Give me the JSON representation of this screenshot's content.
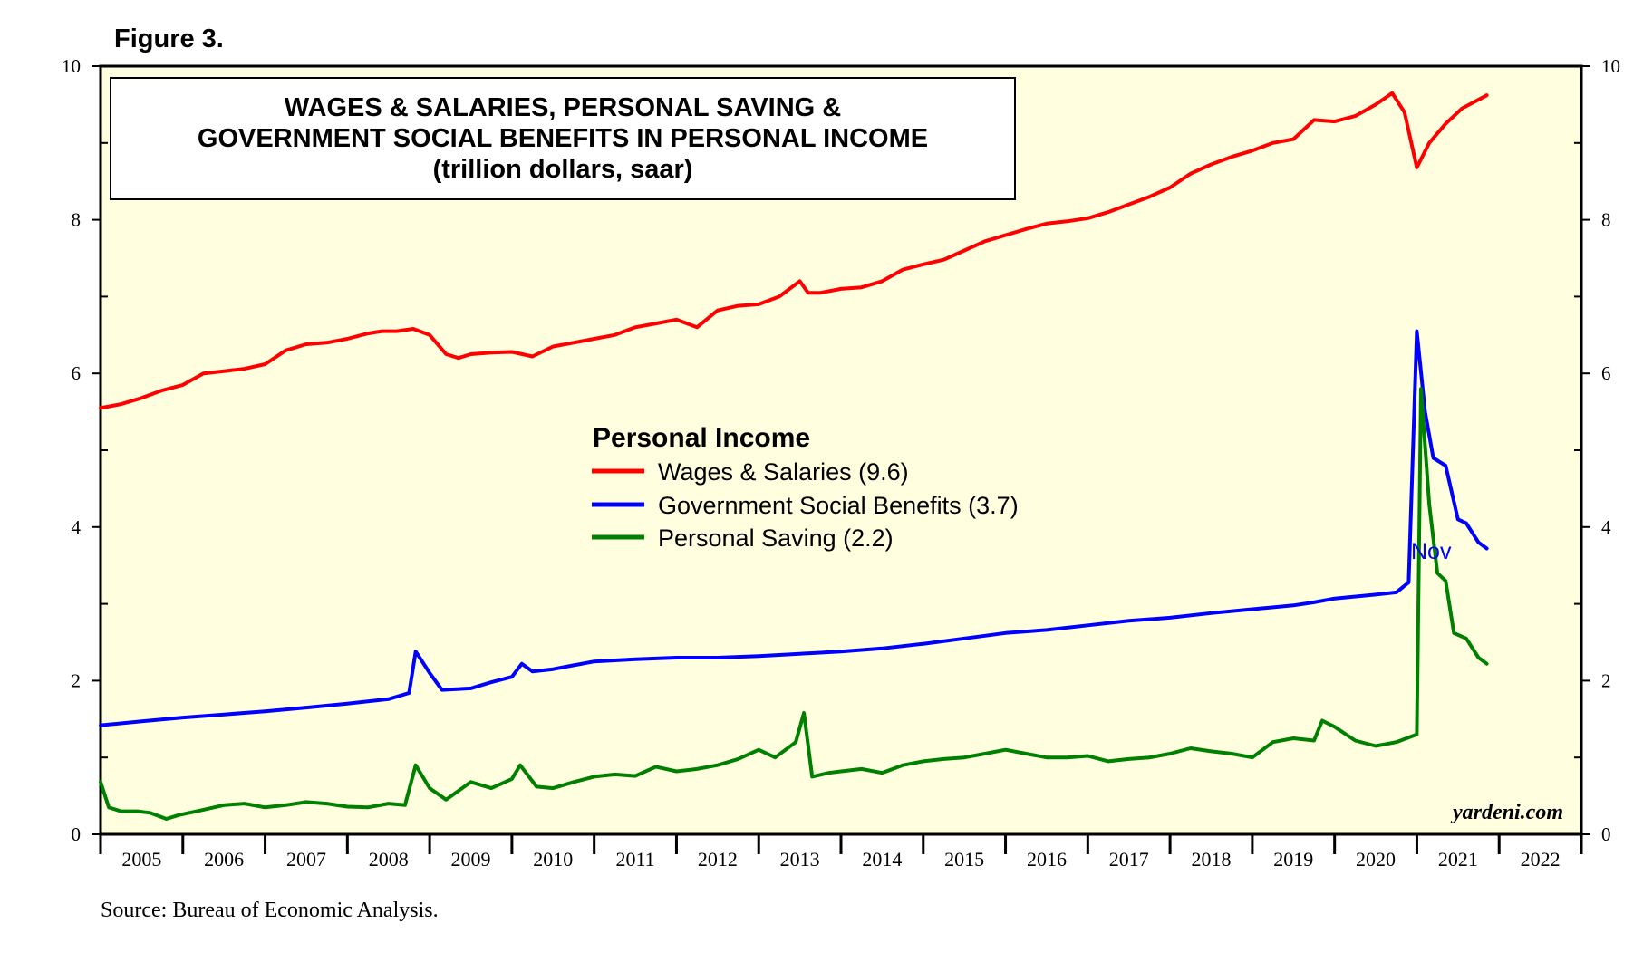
{
  "figure_label": "Figure 3.",
  "source": "Source: Bureau of Economic Analysis.",
  "watermark": "yardeni.com",
  "end_label": "Nov",
  "colors": {
    "plot_bg": "#ffffe0",
    "wages": "#ff0000",
    "benefits": "#0000ff",
    "saving": "#008000",
    "frame": "#000000"
  },
  "chart_data": {
    "type": "line",
    "title_lines": [
      "WAGES & SALARIES, PERSONAL SAVING &",
      "GOVERNMENT SOCIAL BENEFITS IN PERSONAL INCOME",
      "(trillion dollars, saar)"
    ],
    "legend_title": "Personal Income",
    "ylim": [
      0,
      10
    ],
    "y_ticks": [
      0,
      2,
      4,
      6,
      8,
      10
    ],
    "y_tick_labels": [
      "0",
      "2",
      "4",
      "6",
      "8",
      "10"
    ],
    "xlim": [
      2005.0,
      2023.0
    ],
    "x_year_labels": [
      "2005",
      "2006",
      "2007",
      "2008",
      "2009",
      "2010",
      "2011",
      "2012",
      "2013",
      "2014",
      "2015",
      "2016",
      "2017",
      "2018",
      "2019",
      "2020",
      "2021",
      "2022"
    ],
    "series": [
      {
        "name": "Wages & Salaries (9.6)",
        "key": "wages",
        "points": [
          [
            2005.0,
            5.55
          ],
          [
            2005.25,
            5.6
          ],
          [
            2005.5,
            5.68
          ],
          [
            2005.75,
            5.78
          ],
          [
            2006.0,
            5.85
          ],
          [
            2006.25,
            6.0
          ],
          [
            2006.5,
            6.03
          ],
          [
            2006.75,
            6.06
          ],
          [
            2007.0,
            6.12
          ],
          [
            2007.25,
            6.3
          ],
          [
            2007.5,
            6.38
          ],
          [
            2007.75,
            6.4
          ],
          [
            2008.0,
            6.45
          ],
          [
            2008.25,
            6.52
          ],
          [
            2008.42,
            6.55
          ],
          [
            2008.6,
            6.55
          ],
          [
            2008.8,
            6.58
          ],
          [
            2009.0,
            6.5
          ],
          [
            2009.2,
            6.25
          ],
          [
            2009.35,
            6.2
          ],
          [
            2009.5,
            6.25
          ],
          [
            2009.75,
            6.27
          ],
          [
            2010.0,
            6.28
          ],
          [
            2010.25,
            6.22
          ],
          [
            2010.5,
            6.35
          ],
          [
            2010.75,
            6.4
          ],
          [
            2011.0,
            6.45
          ],
          [
            2011.25,
            6.5
          ],
          [
            2011.5,
            6.6
          ],
          [
            2011.75,
            6.65
          ],
          [
            2012.0,
            6.7
          ],
          [
            2012.25,
            6.6
          ],
          [
            2012.5,
            6.82
          ],
          [
            2012.75,
            6.88
          ],
          [
            2013.0,
            6.9
          ],
          [
            2013.25,
            7.0
          ],
          [
            2013.5,
            7.2
          ],
          [
            2013.6,
            7.05
          ],
          [
            2013.75,
            7.05
          ],
          [
            2014.0,
            7.1
          ],
          [
            2014.25,
            7.12
          ],
          [
            2014.5,
            7.2
          ],
          [
            2014.75,
            7.35
          ],
          [
            2015.0,
            7.42
          ],
          [
            2015.25,
            7.48
          ],
          [
            2015.5,
            7.6
          ],
          [
            2015.75,
            7.72
          ],
          [
            2016.0,
            7.8
          ],
          [
            2016.25,
            7.88
          ],
          [
            2016.5,
            7.95
          ],
          [
            2016.75,
            7.98
          ],
          [
            2017.0,
            8.02
          ],
          [
            2017.25,
            8.1
          ],
          [
            2017.5,
            8.2
          ],
          [
            2017.75,
            8.3
          ],
          [
            2018.0,
            8.42
          ],
          [
            2018.25,
            8.6
          ],
          [
            2018.5,
            8.72
          ],
          [
            2018.75,
            8.82
          ],
          [
            2019.0,
            8.9
          ],
          [
            2019.25,
            9.0
          ],
          [
            2019.5,
            9.05
          ],
          [
            2019.75,
            9.3
          ],
          [
            2020.0,
            9.28
          ],
          [
            2020.25,
            9.35
          ],
          [
            2020.5,
            9.5
          ],
          [
            2020.7,
            9.65
          ],
          [
            2020.85,
            9.4
          ],
          [
            2021.0,
            8.68
          ],
          [
            2021.15,
            9.0
          ],
          [
            2021.35,
            9.25
          ],
          [
            2021.55,
            9.45
          ],
          [
            2021.85,
            9.62
          ]
        ]
      },
      {
        "name": "Government Social Benefits (3.7)",
        "key": "benefits",
        "points": [
          [
            2005.0,
            1.42
          ],
          [
            2005.5,
            1.47
          ],
          [
            2006.0,
            1.52
          ],
          [
            2006.5,
            1.56
          ],
          [
            2007.0,
            1.6
          ],
          [
            2007.5,
            1.65
          ],
          [
            2008.0,
            1.7
          ],
          [
            2008.5,
            1.76
          ],
          [
            2008.75,
            1.84
          ],
          [
            2008.83,
            2.38
          ],
          [
            2009.0,
            2.1
          ],
          [
            2009.15,
            1.88
          ],
          [
            2009.5,
            1.9
          ],
          [
            2009.75,
            1.98
          ],
          [
            2010.0,
            2.05
          ],
          [
            2010.12,
            2.22
          ],
          [
            2010.25,
            2.12
          ],
          [
            2010.5,
            2.15
          ],
          [
            2010.75,
            2.2
          ],
          [
            2011.0,
            2.25
          ],
          [
            2011.5,
            2.28
          ],
          [
            2012.0,
            2.3
          ],
          [
            2012.5,
            2.3
          ],
          [
            2013.0,
            2.32
          ],
          [
            2013.5,
            2.35
          ],
          [
            2014.0,
            2.38
          ],
          [
            2014.5,
            2.42
          ],
          [
            2015.0,
            2.48
          ],
          [
            2015.5,
            2.55
          ],
          [
            2016.0,
            2.62
          ],
          [
            2016.5,
            2.66
          ],
          [
            2017.0,
            2.72
          ],
          [
            2017.5,
            2.78
          ],
          [
            2018.0,
            2.82
          ],
          [
            2018.5,
            2.88
          ],
          [
            2019.0,
            2.93
          ],
          [
            2019.5,
            2.98
          ],
          [
            2019.75,
            3.02
          ],
          [
            2020.0,
            3.07
          ],
          [
            2020.5,
            3.12
          ],
          [
            2020.75,
            3.15
          ],
          [
            2020.9,
            3.28
          ],
          [
            2021.0,
            6.55
          ],
          [
            2021.1,
            5.5
          ],
          [
            2021.2,
            4.9
          ],
          [
            2021.35,
            4.8
          ],
          [
            2021.5,
            4.1
          ],
          [
            2021.6,
            4.05
          ],
          [
            2021.75,
            3.8
          ],
          [
            2021.85,
            3.72
          ]
        ]
      },
      {
        "name": "Personal Saving (2.2)",
        "key": "saving",
        "points": [
          [
            2005.0,
            0.68
          ],
          [
            2005.1,
            0.35
          ],
          [
            2005.25,
            0.3
          ],
          [
            2005.45,
            0.3
          ],
          [
            2005.6,
            0.28
          ],
          [
            2005.8,
            0.2
          ],
          [
            2005.95,
            0.25
          ],
          [
            2006.25,
            0.32
          ],
          [
            2006.5,
            0.38
          ],
          [
            2006.75,
            0.4
          ],
          [
            2007.0,
            0.35
          ],
          [
            2007.25,
            0.38
          ],
          [
            2007.5,
            0.42
          ],
          [
            2007.75,
            0.4
          ],
          [
            2008.0,
            0.36
          ],
          [
            2008.25,
            0.35
          ],
          [
            2008.5,
            0.4
          ],
          [
            2008.7,
            0.38
          ],
          [
            2008.83,
            0.9
          ],
          [
            2009.0,
            0.6
          ],
          [
            2009.2,
            0.45
          ],
          [
            2009.5,
            0.68
          ],
          [
            2009.75,
            0.6
          ],
          [
            2010.0,
            0.72
          ],
          [
            2010.1,
            0.9
          ],
          [
            2010.3,
            0.62
          ],
          [
            2010.5,
            0.6
          ],
          [
            2010.75,
            0.68
          ],
          [
            2011.0,
            0.75
          ],
          [
            2011.25,
            0.78
          ],
          [
            2011.5,
            0.76
          ],
          [
            2011.75,
            0.88
          ],
          [
            2012.0,
            0.82
          ],
          [
            2012.25,
            0.85
          ],
          [
            2012.5,
            0.9
          ],
          [
            2012.75,
            0.98
          ],
          [
            2013.0,
            1.1
          ],
          [
            2013.2,
            1.0
          ],
          [
            2013.45,
            1.2
          ],
          [
            2013.55,
            1.58
          ],
          [
            2013.65,
            0.75
          ],
          [
            2013.85,
            0.8
          ],
          [
            2014.0,
            0.82
          ],
          [
            2014.25,
            0.85
          ],
          [
            2014.5,
            0.8
          ],
          [
            2014.75,
            0.9
          ],
          [
            2015.0,
            0.95
          ],
          [
            2015.25,
            0.98
          ],
          [
            2015.5,
            1.0
          ],
          [
            2015.75,
            1.05
          ],
          [
            2016.0,
            1.1
          ],
          [
            2016.25,
            1.05
          ],
          [
            2016.5,
            1.0
          ],
          [
            2016.75,
            1.0
          ],
          [
            2017.0,
            1.02
          ],
          [
            2017.25,
            0.95
          ],
          [
            2017.5,
            0.98
          ],
          [
            2017.75,
            1.0
          ],
          [
            2018.0,
            1.05
          ],
          [
            2018.25,
            1.12
          ],
          [
            2018.5,
            1.08
          ],
          [
            2018.75,
            1.05
          ],
          [
            2019.0,
            1.0
          ],
          [
            2019.25,
            1.2
          ],
          [
            2019.5,
            1.25
          ],
          [
            2019.75,
            1.22
          ],
          [
            2019.85,
            1.48
          ],
          [
            2020.0,
            1.4
          ],
          [
            2020.25,
            1.22
          ],
          [
            2020.5,
            1.15
          ],
          [
            2020.75,
            1.2
          ],
          [
            2021.0,
            1.3
          ],
          [
            2021.05,
            5.8
          ],
          [
            2021.15,
            4.3
          ],
          [
            2021.25,
            3.4
          ],
          [
            2021.35,
            3.3
          ],
          [
            2021.45,
            2.62
          ],
          [
            2021.6,
            2.55
          ],
          [
            2021.75,
            2.3
          ],
          [
            2021.85,
            2.22
          ]
        ]
      }
    ]
  }
}
